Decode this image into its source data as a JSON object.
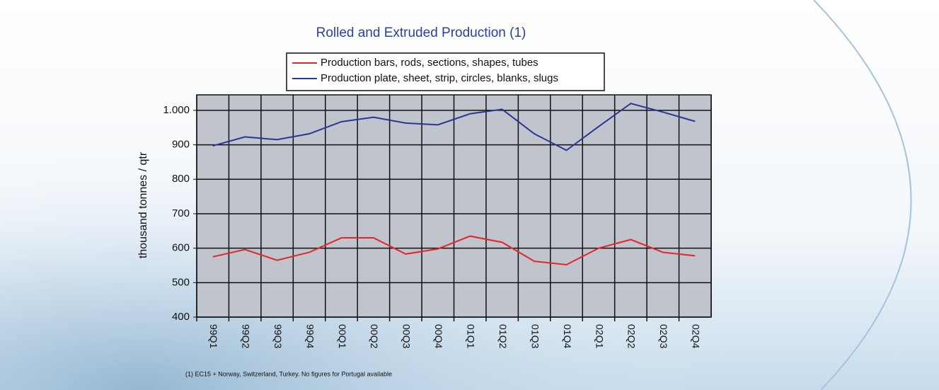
{
  "chart_data": {
    "type": "line",
    "title": "Rolled and Extruded Production (1)",
    "y_label": "thousand tonnes / qtr",
    "footnote": "(1) EC15 + Norway, Switzerland, Turkey.  No figures for Portugal available",
    "categories": [
      "99Q1",
      "99Q2",
      "99Q3",
      "99Q4",
      "00Q1",
      "00Q2",
      "00Q3",
      "00Q4",
      "01Q1",
      "01Q2",
      "01Q3",
      "01Q4",
      "02Q1",
      "02Q2",
      "02Q3",
      "02Q4"
    ],
    "series": [
      {
        "name": "Production bars, rods, sections, shapes, tubes",
        "color": "#e3262a",
        "values": [
          575,
          596,
          565,
          588,
          630,
          630,
          583,
          598,
          635,
          617,
          562,
          552,
          600,
          625,
          588,
          578
        ]
      },
      {
        "name": "Production plate, sheet, strip, circles, blanks, slugs",
        "color": "#2b3594",
        "values": [
          897,
          923,
          915,
          932,
          967,
          980,
          963,
          958,
          990,
          1003,
          932,
          884,
          953,
          1020,
          995,
          968
        ]
      }
    ],
    "ylim": [
      400,
      1045
    ],
    "yticks": [
      400,
      500,
      600,
      700,
      800,
      900,
      {
        "value": 1000,
        "label": "1.000"
      }
    ],
    "grid": true
  }
}
